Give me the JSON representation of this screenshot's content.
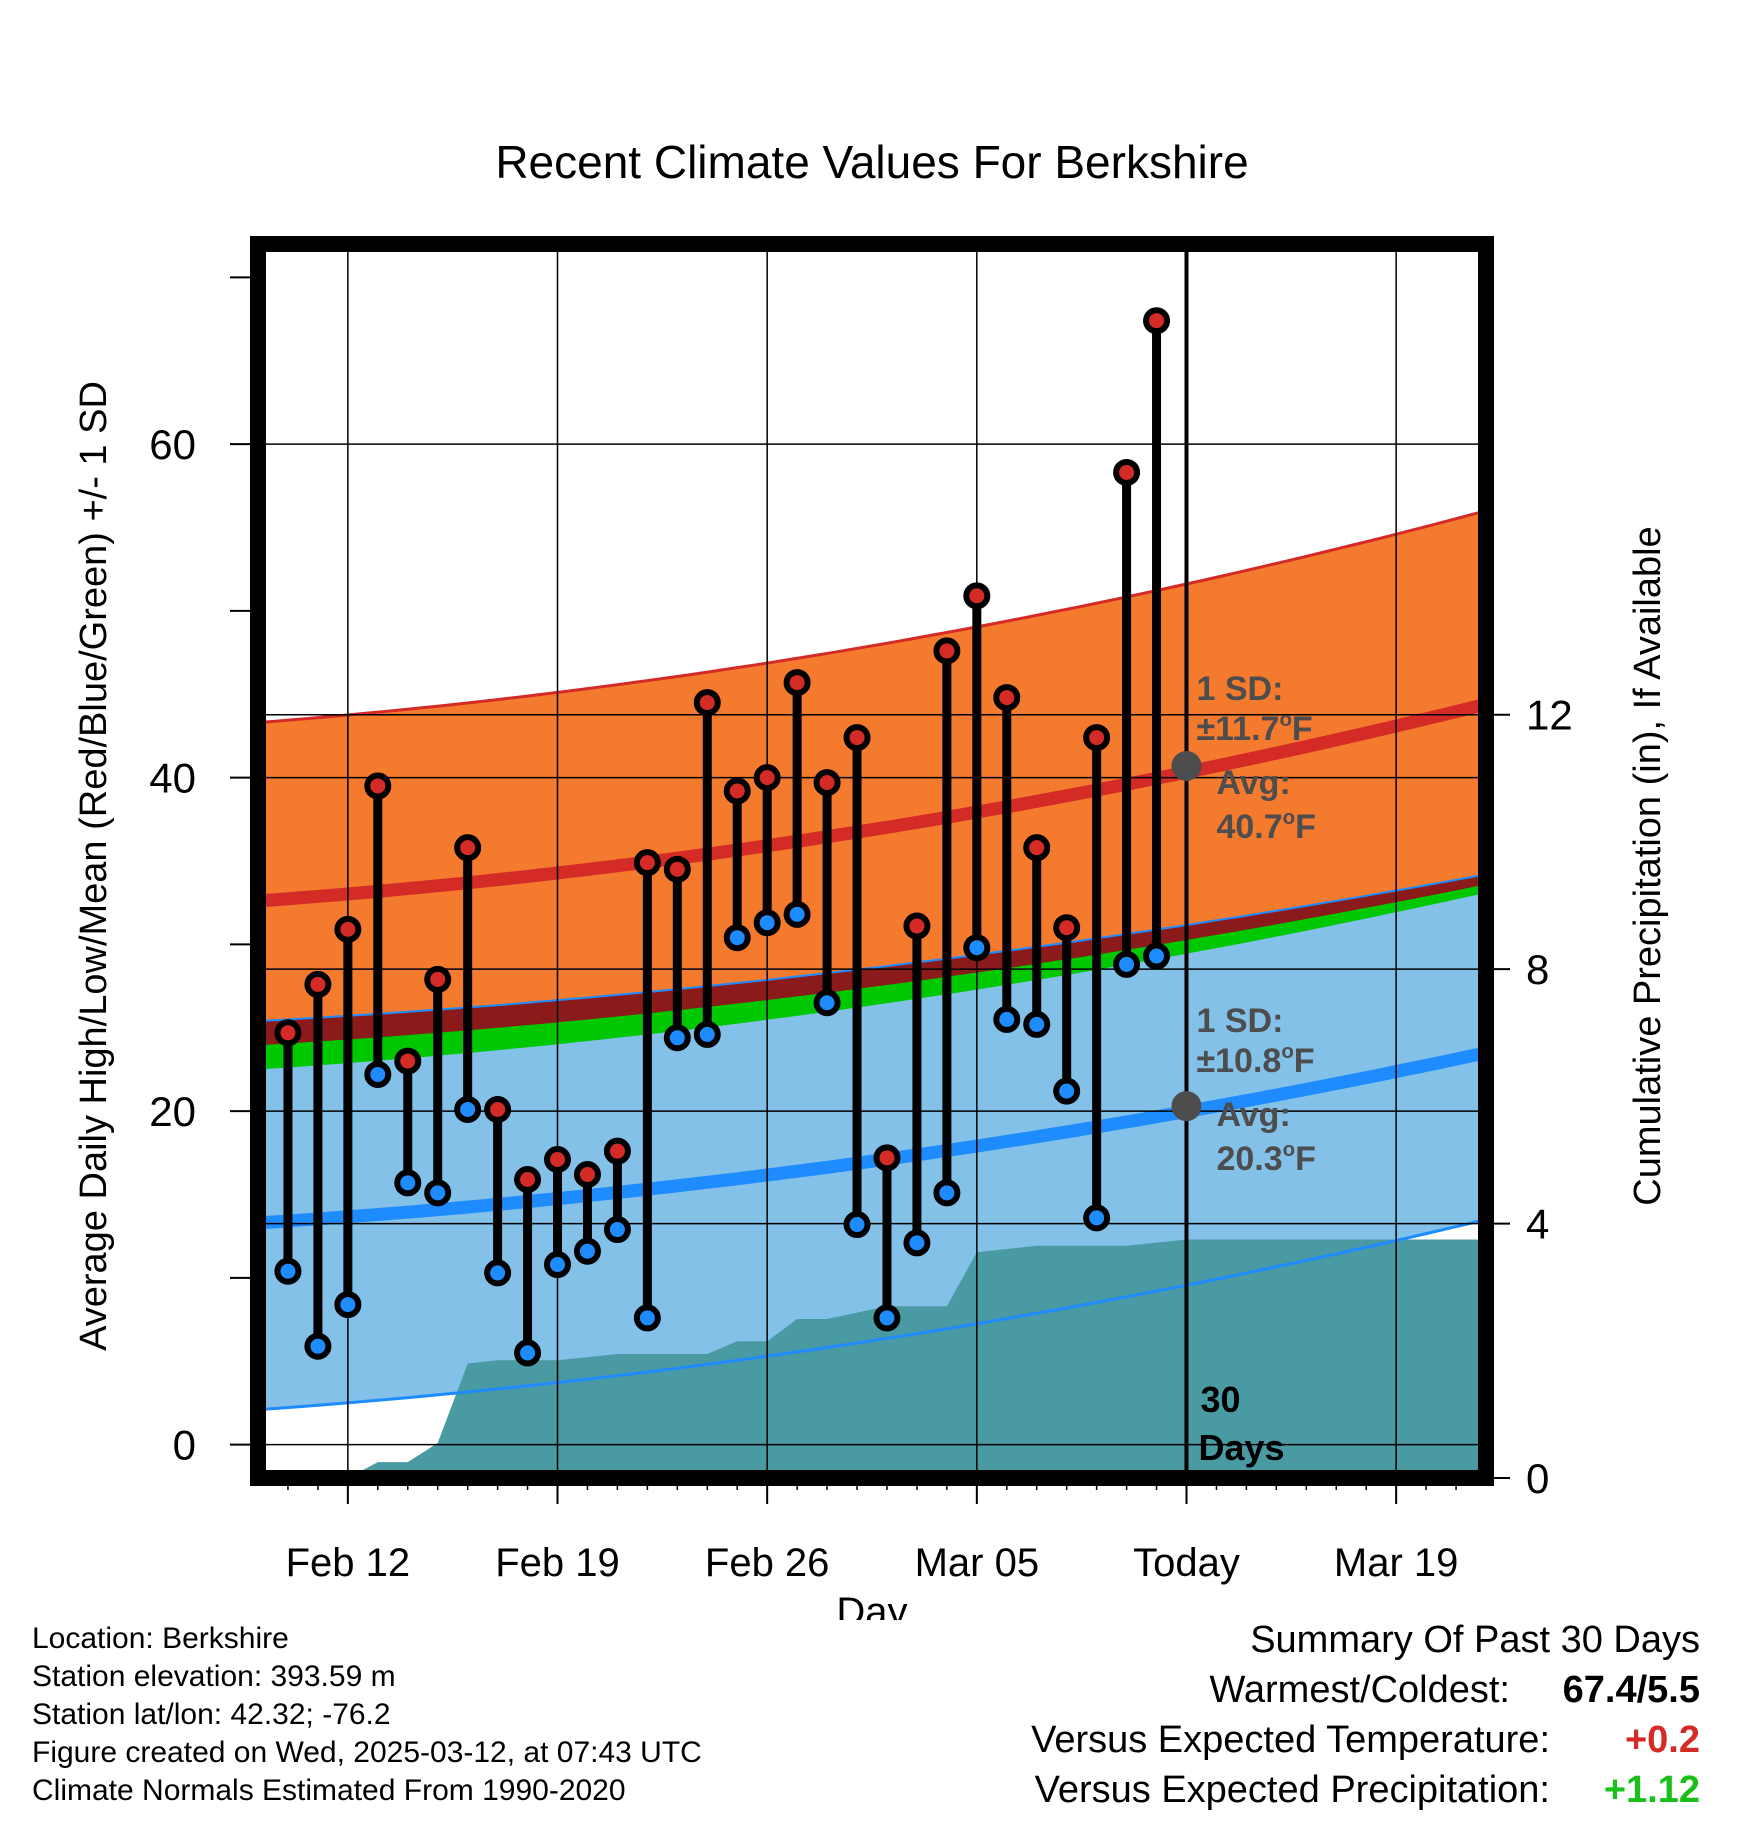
{
  "chart_data": {
    "type": "line",
    "title": "Recent Climate Values For Berkshire",
    "xlabel": "Day",
    "ylabel": "Average Daily High/Low/Mean (Red/Blue/Green) +/- 1 SD",
    "y2label": "Cumulative Precipitation (in), If Available",
    "x_tick_labels": [
      "Feb 12",
      "Feb 19",
      "Feb 26",
      "Mar 05",
      "Today",
      "Mar 19"
    ],
    "x_tick_days": [
      0,
      7,
      14,
      21,
      28,
      35
    ],
    "xlim_days": [
      -3,
      38
    ],
    "today_day": 28,
    "ylim": [
      -2,
      72
    ],
    "y_ticks": [
      0,
      20,
      40,
      60
    ],
    "y_minor_ticks": [
      10,
      30,
      50,
      70
    ],
    "y2lim": [
      0,
      19.4
    ],
    "y2_ticks": [
      0,
      4,
      8,
      12
    ],
    "grid": true,
    "colors": {
      "high_band": "#f47a2e",
      "high_line": "#d42b27",
      "low_band": "#84c1e8",
      "low_line": "#1e8cff",
      "mean_band": "#00c800",
      "mean_line": "#8b1a1a",
      "precip": "#4a9aa3",
      "high_marker": "#d42b27",
      "low_marker": "#1e8cff",
      "annotation": "#4d4d4d"
    },
    "normals": {
      "high_avg": {
        "start": 32.6,
        "end": 44.4
      },
      "high_sd_upper": {
        "start": 43.3,
        "end": 56.0
      },
      "low_avg": {
        "start": 13.3,
        "end": 23.5
      },
      "low_sd_lower": {
        "start": 2.1,
        "end": 13.5
      },
      "mean_upper": {
        "start": 25.4,
        "end": 34.2
      },
      "mean_lower": {
        "start": 22.5,
        "end": 33.1
      }
    },
    "daily": {
      "day_offsets": [
        -2,
        -1,
        0,
        1,
        2,
        3,
        4,
        5,
        6,
        7,
        8,
        9,
        10,
        11,
        12,
        13,
        14,
        15,
        16,
        17,
        18,
        19,
        20,
        21,
        22,
        23,
        24,
        25,
        26,
        27
      ],
      "highs": [
        24.7,
        27.6,
        30.9,
        39.5,
        23.0,
        27.9,
        35.8,
        20.1,
        15.9,
        17.1,
        16.2,
        17.6,
        34.9,
        34.5,
        44.5,
        39.2,
        40.0,
        45.7,
        39.7,
        42.4,
        17.2,
        31.1,
        47.6,
        50.9,
        44.8,
        35.8,
        31.0,
        42.4,
        58.3,
        67.4
      ],
      "lows": [
        10.4,
        5.9,
        8.4,
        22.2,
        15.7,
        15.1,
        20.1,
        10.3,
        5.5,
        10.8,
        11.6,
        12.9,
        7.6,
        24.4,
        24.6,
        30.4,
        31.3,
        31.8,
        26.5,
        13.2,
        7.6,
        12.1,
        15.1,
        29.8,
        25.5,
        25.2,
        21.2,
        13.6,
        28.8,
        29.3
      ]
    },
    "precip": {
      "day_offsets": [
        -3,
        -2,
        -1,
        0,
        1,
        2,
        3,
        4,
        5,
        6,
        7,
        8,
        9,
        10,
        11,
        12,
        13,
        14,
        15,
        16,
        17,
        18,
        19,
        20,
        21,
        22,
        23,
        24,
        25,
        26,
        27,
        28,
        29,
        30,
        31,
        32,
        33,
        34,
        35,
        36,
        37,
        38
      ],
      "cumulative": [
        0,
        0,
        0,
        0,
        0.25,
        0.25,
        0.55,
        1.8,
        1.85,
        1.85,
        1.85,
        1.9,
        1.95,
        1.95,
        1.95,
        1.95,
        2.15,
        2.15,
        2.5,
        2.5,
        2.6,
        2.7,
        2.7,
        2.7,
        3.55,
        3.6,
        3.65,
        3.65,
        3.65,
        3.65,
        3.7,
        3.75,
        3.75,
        3.75,
        3.75,
        3.75,
        3.75,
        3.75,
        3.75,
        3.75,
        3.75,
        3.75
      ]
    },
    "annotations": {
      "high_sd_label": "1 SD:",
      "high_sd_value": "±11.7",
      "high_avg_label": "Avg:",
      "high_avg_value": "40.7",
      "low_sd_label": "1 SD:",
      "low_sd_value": "±10.8",
      "low_avg_label": "Avg:",
      "low_avg_value": "20.3",
      "degree_symbol": "o",
      "unit": "F",
      "high_avg_today": 40.7,
      "low_avg_today": 20.3,
      "days_count": "30",
      "days_word": "Days"
    }
  },
  "footer": {
    "location": "Location: Berkshire",
    "elevation": "Station elevation: 393.59 m",
    "latlon": "Station lat/lon: 42.32; -76.2",
    "created": "Figure created on Wed, 2025-03-12, at 07:43 UTC",
    "normals": "Climate Normals Estimated From 1990-2020"
  },
  "summary": {
    "title": "Summary Of Past 30 Days",
    "warmest_label": "Warmest/Coldest:",
    "warmest_value": "67.4/5.5",
    "temp_label": "Versus Expected Temperature:",
    "temp_value": "+0.2",
    "temp_color": "#d42b27",
    "precip_label": "Versus Expected Precipitation:",
    "precip_value": "+1.12",
    "precip_color": "#19c019"
  }
}
